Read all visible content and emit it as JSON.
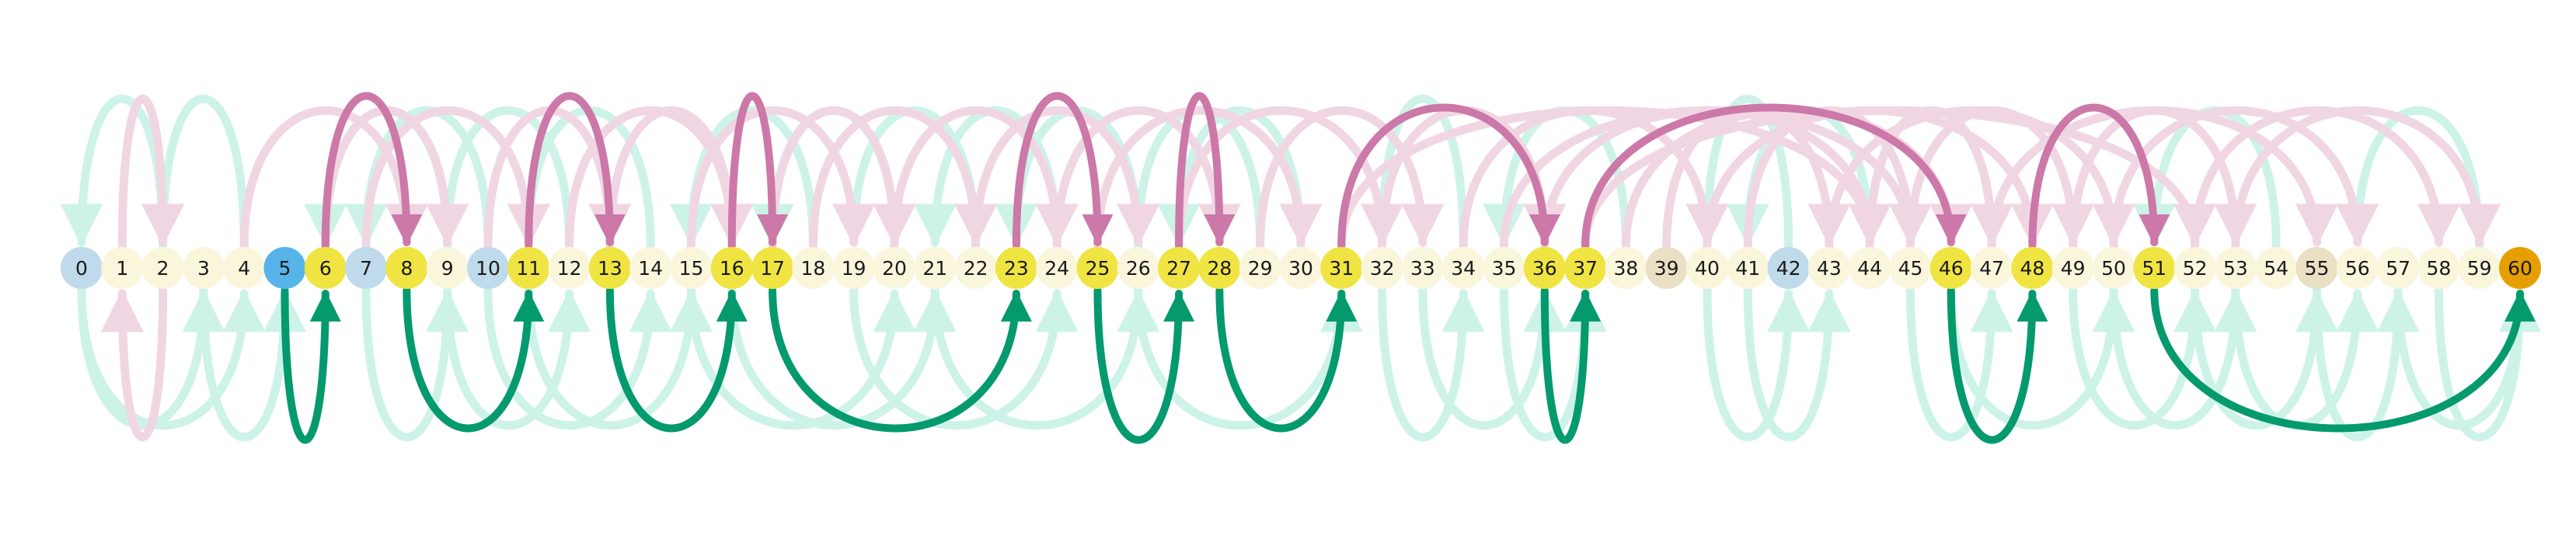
{
  "colors": {
    "faint_green": "#cdf3e8",
    "faint_pink": "#f0d6e3",
    "bold_green": "#049a6e",
    "bold_pink": "#cc78a8",
    "node_default": "#f9f6dc",
    "node_path": "#f0e442",
    "node_start": "#56b4e9",
    "node_visited": "#bfdbeb",
    "node_tan": "#e9dfc3",
    "node_goal": "#e69f00"
  },
  "nodes": [
    {
      "label": "0",
      "kind": "visited"
    },
    {
      "label": "1",
      "kind": "default"
    },
    {
      "label": "2",
      "kind": "default"
    },
    {
      "label": "3",
      "kind": "default"
    },
    {
      "label": "4",
      "kind": "default"
    },
    {
      "label": "5",
      "kind": "start"
    },
    {
      "label": "6",
      "kind": "path"
    },
    {
      "label": "7",
      "kind": "visited"
    },
    {
      "label": "8",
      "kind": "path"
    },
    {
      "label": "9",
      "kind": "default"
    },
    {
      "label": "10",
      "kind": "visited"
    },
    {
      "label": "11",
      "kind": "path"
    },
    {
      "label": "12",
      "kind": "default"
    },
    {
      "label": "13",
      "kind": "path"
    },
    {
      "label": "14",
      "kind": "default"
    },
    {
      "label": "15",
      "kind": "default"
    },
    {
      "label": "16",
      "kind": "path"
    },
    {
      "label": "17",
      "kind": "path"
    },
    {
      "label": "18",
      "kind": "default"
    },
    {
      "label": "19",
      "kind": "default"
    },
    {
      "label": "20",
      "kind": "default"
    },
    {
      "label": "21",
      "kind": "default"
    },
    {
      "label": "22",
      "kind": "default"
    },
    {
      "label": "23",
      "kind": "path"
    },
    {
      "label": "24",
      "kind": "default"
    },
    {
      "label": "25",
      "kind": "path"
    },
    {
      "label": "26",
      "kind": "default"
    },
    {
      "label": "27",
      "kind": "path"
    },
    {
      "label": "28",
      "kind": "path"
    },
    {
      "label": "29",
      "kind": "default"
    },
    {
      "label": "30",
      "kind": "default"
    },
    {
      "label": "31",
      "kind": "path"
    },
    {
      "label": "32",
      "kind": "default"
    },
    {
      "label": "33",
      "kind": "default"
    },
    {
      "label": "34",
      "kind": "default"
    },
    {
      "label": "35",
      "kind": "default"
    },
    {
      "label": "36",
      "kind": "path"
    },
    {
      "label": "37",
      "kind": "path"
    },
    {
      "label": "38",
      "kind": "default"
    },
    {
      "label": "39",
      "kind": "tan"
    },
    {
      "label": "40",
      "kind": "default"
    },
    {
      "label": "41",
      "kind": "default"
    },
    {
      "label": "42",
      "kind": "visited"
    },
    {
      "label": "43",
      "kind": "default"
    },
    {
      "label": "44",
      "kind": "default"
    },
    {
      "label": "45",
      "kind": "default"
    },
    {
      "label": "46",
      "kind": "path"
    },
    {
      "label": "47",
      "kind": "default"
    },
    {
      "label": "48",
      "kind": "path"
    },
    {
      "label": "49",
      "kind": "default"
    },
    {
      "label": "50",
      "kind": "default"
    },
    {
      "label": "51",
      "kind": "path"
    },
    {
      "label": "52",
      "kind": "default"
    },
    {
      "label": "53",
      "kind": "default"
    },
    {
      "label": "54",
      "kind": "default"
    },
    {
      "label": "55",
      "kind": "tan"
    },
    {
      "label": "56",
      "kind": "default"
    },
    {
      "label": "57",
      "kind": "default"
    },
    {
      "label": "58",
      "kind": "default"
    },
    {
      "label": "59",
      "kind": "default"
    },
    {
      "label": "60",
      "kind": "goal"
    }
  ],
  "faint_green_edges": [
    [
      0,
      3
    ],
    [
      2,
      0
    ],
    [
      0,
      4
    ],
    [
      3,
      5
    ],
    [
      4,
      2
    ],
    [
      9,
      6
    ],
    [
      7,
      9
    ],
    [
      10,
      7
    ],
    [
      9,
      12
    ],
    [
      12,
      9
    ],
    [
      10,
      14
    ],
    [
      11,
      15
    ],
    [
      14,
      11
    ],
    [
      15,
      20
    ],
    [
      18,
      15
    ],
    [
      16,
      21
    ],
    [
      20,
      17
    ],
    [
      22,
      19
    ],
    [
      21,
      26
    ],
    [
      19,
      24
    ],
    [
      24,
      21
    ],
    [
      26,
      23
    ],
    [
      29,
      26
    ],
    [
      26,
      31
    ],
    [
      30,
      27
    ],
    [
      32,
      34
    ],
    [
      34,
      32
    ],
    [
      33,
      36
    ],
    [
      35,
      37
    ],
    [
      38,
      35
    ],
    [
      40,
      42
    ],
    [
      42,
      40
    ],
    [
      41,
      43
    ],
    [
      44,
      41
    ],
    [
      45,
      47
    ],
    [
      47,
      44
    ],
    [
      46,
      50
    ],
    [
      49,
      52
    ],
    [
      50,
      53
    ],
    [
      52,
      55
    ],
    [
      54,
      51
    ],
    [
      55,
      57
    ],
    [
      53,
      56
    ],
    [
      57,
      60
    ],
    [
      59,
      56
    ],
    [
      58,
      60
    ]
  ],
  "faint_pink_edges": [
    [
      1,
      2
    ],
    [
      2,
      1
    ],
    [
      4,
      8
    ],
    [
      6,
      9
    ],
    [
      7,
      11
    ],
    [
      10,
      13
    ],
    [
      12,
      16
    ],
    [
      15,
      19
    ],
    [
      17,
      20
    ],
    [
      18,
      22
    ],
    [
      20,
      24
    ],
    [
      22,
      26
    ],
    [
      24,
      28
    ],
    [
      25,
      30
    ],
    [
      27,
      32
    ],
    [
      29,
      33
    ],
    [
      32,
      36
    ],
    [
      34,
      40
    ],
    [
      35,
      45
    ],
    [
      36,
      44
    ],
    [
      38,
      46
    ],
    [
      39,
      43
    ],
    [
      40,
      48
    ],
    [
      41,
      45
    ],
    [
      43,
      50
    ],
    [
      44,
      47
    ],
    [
      45,
      49
    ],
    [
      47,
      55
    ],
    [
      49,
      53
    ],
    [
      52,
      58
    ],
    [
      53,
      59
    ],
    [
      31,
      44
    ],
    [
      37,
      52
    ],
    [
      13,
      16
    ],
    [
      50,
      56
    ]
  ],
  "path_edges": [
    {
      "from": 5,
      "to": 6,
      "side": "below"
    },
    {
      "from": 6,
      "to": 8,
      "side": "above"
    },
    {
      "from": 8,
      "to": 11,
      "side": "below"
    },
    {
      "from": 11,
      "to": 13,
      "side": "above"
    },
    {
      "from": 13,
      "to": 16,
      "side": "below"
    },
    {
      "from": 16,
      "to": 17,
      "side": "above"
    },
    {
      "from": 17,
      "to": 23,
      "side": "below"
    },
    {
      "from": 23,
      "to": 25,
      "side": "above"
    },
    {
      "from": 25,
      "to": 27,
      "side": "below"
    },
    {
      "from": 27,
      "to": 28,
      "side": "above"
    },
    {
      "from": 28,
      "to": 31,
      "side": "below"
    },
    {
      "from": 31,
      "to": 36,
      "side": "above"
    },
    {
      "from": 36,
      "to": 37,
      "side": "below"
    },
    {
      "from": 37,
      "to": 46,
      "side": "above"
    },
    {
      "from": 46,
      "to": 48,
      "side": "below"
    },
    {
      "from": 48,
      "to": 51,
      "side": "above"
    },
    {
      "from": 51,
      "to": 60,
      "side": "below"
    }
  ]
}
